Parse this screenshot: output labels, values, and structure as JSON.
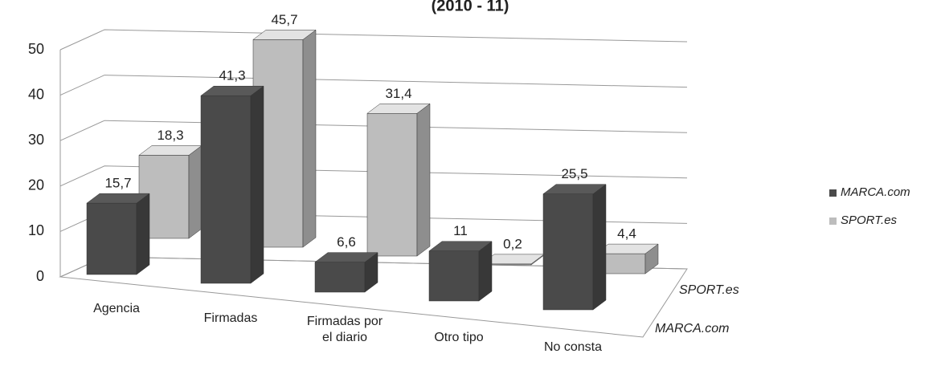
{
  "chart_data": {
    "type": "bar3d",
    "title": "(2010 - 11)",
    "categories": [
      "Agencia",
      "Firmadas",
      "Firmadas por el diario",
      "Otro tipo",
      "No consta"
    ],
    "series": [
      {
        "name": "MARCA.com",
        "color": "#4a4a4a",
        "values": [
          15.7,
          41.3,
          6.6,
          11,
          25.5
        ],
        "value_labels": [
          "15,7",
          "41,3",
          "6,6",
          "11",
          "25,5"
        ]
      },
      {
        "name": "SPORT.es",
        "color": "#bdbdbd",
        "values": [
          18.3,
          45.7,
          31.4,
          0.2,
          4.4
        ],
        "value_labels": [
          "18,3",
          "45,7",
          "31,4",
          "0,2",
          "4,4"
        ]
      }
    ],
    "ylim": [
      0,
      50
    ],
    "yticks": [
      0,
      10,
      20,
      30,
      40,
      50
    ],
    "grid": true,
    "legend": "right"
  }
}
